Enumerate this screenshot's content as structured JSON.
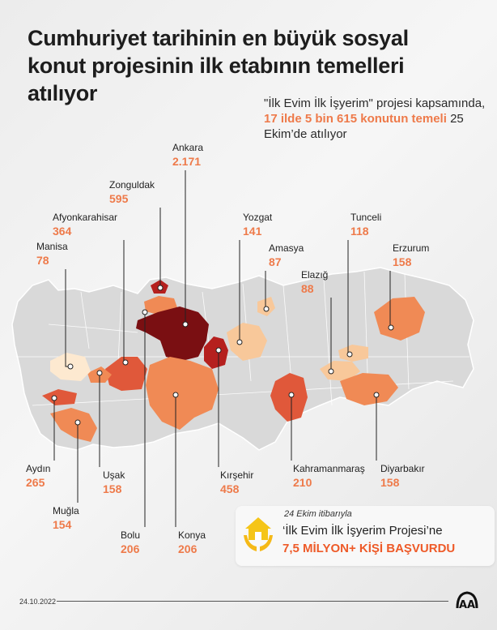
{
  "title": "Cumhuriyet tarihinin en büyük sosyal konut projesinin ilk etabının temelleri atılıyor",
  "subtitle": {
    "part1": "\"İlk Evim İlk İşyerim\" projesi kapsamında, ",
    "highlight": "17 ilde 5 bin 615 konutun temeli",
    "part2": " 25 Ekim’de atılıyor"
  },
  "provinces": [
    {
      "name": "Ankara",
      "value": "2.171"
    },
    {
      "name": "Zonguldak",
      "value": "595"
    },
    {
      "name": "Afyonkarahisar",
      "value": "364"
    },
    {
      "name": "Manisa",
      "value": "78"
    },
    {
      "name": "Yozgat",
      "value": "141"
    },
    {
      "name": "Amasya",
      "value": "87"
    },
    {
      "name": "Elazığ",
      "value": "88"
    },
    {
      "name": "Tunceli",
      "value": "118"
    },
    {
      "name": "Erzurum",
      "value": "158"
    },
    {
      "name": "Aydın",
      "value": "265"
    },
    {
      "name": "Uşak",
      "value": "158"
    },
    {
      "name": "Muğla",
      "value": "154"
    },
    {
      "name": "Bolu",
      "value": "206"
    },
    {
      "name": "Konya",
      "value": "206"
    },
    {
      "name": "Kırşehir",
      "value": "458"
    },
    {
      "name": "Kahramanmaraş",
      "value": "210"
    },
    {
      "name": "Diyarbakır",
      "value": "158"
    }
  ],
  "colors": {
    "accent": "#ee7a4a",
    "darkest": "#7a0f12",
    "dark": "#b5201e",
    "mid": "#e0583a",
    "light": "#f08a55",
    "pale": "#f8c89a",
    "palest": "#fde9d0",
    "base": "#d9d9d9"
  },
  "callout": {
    "date": "24 Ekim itibarıyla",
    "text": "‘İlk Evim İlk İşyerim Projesi’ne",
    "highlight": "7,5 MİLYON+ KİŞİ BAŞVURDU",
    "icon": "house-in-hands-icon"
  },
  "footer": {
    "date": "24.10.2022",
    "logo": "AA"
  }
}
